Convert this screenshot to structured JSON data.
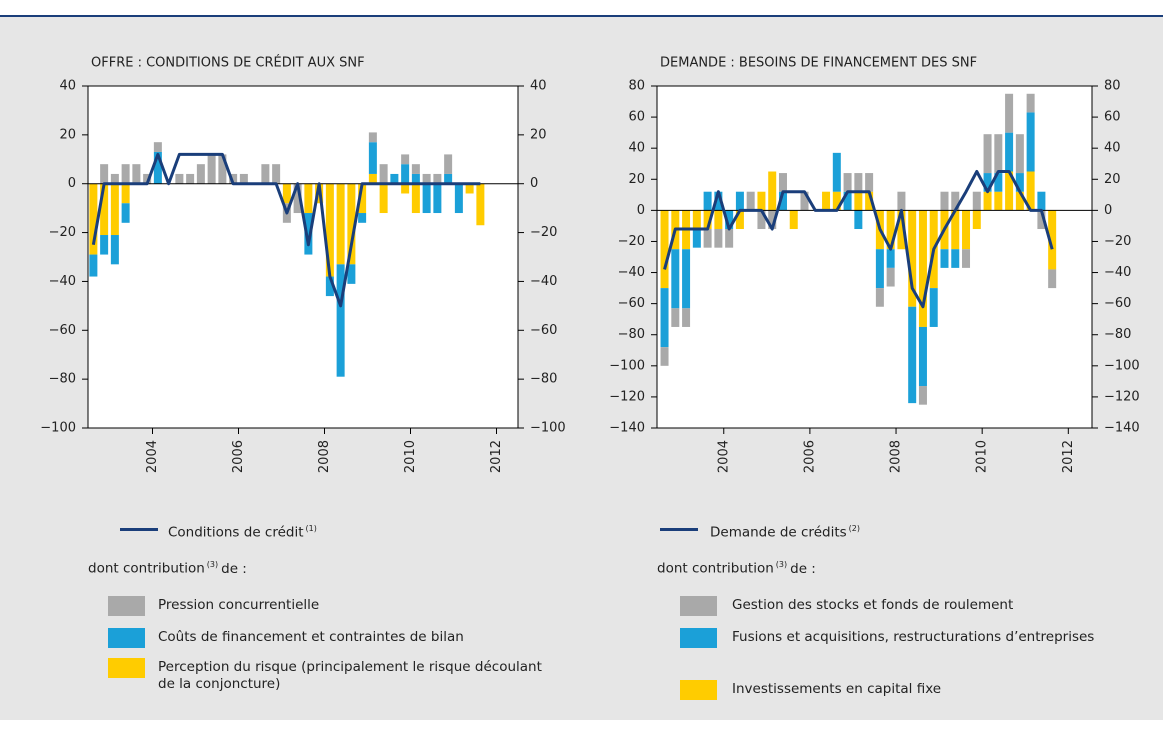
{
  "chart_data": [
    {
      "type": "combo",
      "title": "OFFRE : CONDITIONS DE CRÉDIT AUX SNF",
      "x": [
        2002.625,
        2002.875,
        2003.125,
        2003.375,
        2003.625,
        2003.875,
        2004.125,
        2004.375,
        2004.625,
        2004.875,
        2005.125,
        2005.375,
        2005.625,
        2005.875,
        2006.125,
        2006.375,
        2006.625,
        2006.875,
        2007.125,
        2007.375,
        2007.625,
        2007.875,
        2008.125,
        2008.375,
        2008.625,
        2008.875,
        2009.125,
        2009.375,
        2009.625,
        2009.875,
        2010.125,
        2010.375,
        2010.625,
        2010.875,
        2011.125,
        2011.375,
        2011.625
      ],
      "xlim": [
        2002.5,
        2012.5
      ],
      "xticks": [
        2004,
        2006,
        2008,
        2010,
        2012
      ],
      "ylim": [
        -100,
        40
      ],
      "yticks": [
        {
          "value": -100,
          "label": "−100"
        },
        {
          "value": -80,
          "label": "−80"
        },
        {
          "value": -60,
          "label": "−60"
        },
        {
          "value": -40,
          "label": "−40"
        },
        {
          "value": -20,
          "label": "−20"
        },
        0,
        20,
        40
      ],
      "y2lim": [
        -100,
        40
      ],
      "y2ticks": [
        {
          "value": -100,
          "label": "−100"
        },
        {
          "value": -80,
          "label": "−80"
        },
        {
          "value": -60,
          "label": "−60"
        },
        {
          "value": -40,
          "label": "−40"
        },
        {
          "value": -20,
          "label": "−20"
        },
        0,
        20,
        40
      ],
      "series": [
        {
          "name": "Pression concurrentielle",
          "type": "bar",
          "color": "#a9a9a9",
          "values": [
            0,
            8,
            4,
            8,
            8,
            4,
            4,
            0,
            4,
            4,
            8,
            12,
            12,
            4,
            4,
            0,
            8,
            8,
            -8,
            -12,
            0,
            0,
            0,
            0,
            0,
            0,
            4,
            8,
            0,
            4,
            4,
            4,
            4,
            8,
            0,
            0,
            0
          ]
        },
        {
          "name": "Coûts de financement et contraintes de bilan",
          "type": "bar",
          "color": "#1ba0d8",
          "values": [
            -9,
            -8,
            -12,
            -8,
            0,
            0,
            13,
            0,
            0,
            0,
            0,
            0,
            0,
            0,
            0,
            0,
            0,
            0,
            0,
            0,
            -17,
            0,
            -8,
            -46,
            -8,
            -4,
            13,
            0,
            4,
            8,
            4,
            -12,
            -12,
            4,
            -12,
            0,
            0
          ]
        },
        {
          "name": "Perception du risque (principalement le risque découlant de la conjoncture)",
          "type": "bar",
          "color": "#ffcc00",
          "values": [
            -29,
            -21,
            -21,
            -8,
            0,
            0,
            0,
            0,
            0,
            0,
            0,
            0,
            0,
            0,
            0,
            0,
            0,
            0,
            -8,
            0,
            -12,
            -8,
            -38,
            -33,
            -33,
            -12,
            4,
            -12,
            0,
            -4,
            -12,
            0,
            0,
            0,
            0,
            -4,
            -17
          ]
        },
        {
          "name": "Conditions de crédit",
          "note": "(1)",
          "type": "line",
          "color": "#1a3e7a",
          "values": [
            -25,
            0,
            0,
            0,
            0,
            0,
            12,
            0,
            12,
            12,
            12,
            12,
            12,
            0,
            0,
            0,
            0,
            0,
            -12,
            0,
            -25,
            0,
            -38,
            -50,
            -25,
            0,
            0,
            0,
            0,
            0,
            0,
            0,
            0,
            0,
            0,
            0,
            0
          ]
        }
      ],
      "contribution": {
        "before": "dont contribution",
        "note": "(3)",
        "after": "de :"
      }
    },
    {
      "type": "combo",
      "title": "DEMANDE : BESOINS DE FINANCEMENT DES SNF",
      "x": [
        2002.625,
        2002.875,
        2003.125,
        2003.375,
        2003.625,
        2003.875,
        2004.125,
        2004.375,
        2004.625,
        2004.875,
        2005.125,
        2005.375,
        2005.625,
        2005.875,
        2006.125,
        2006.375,
        2006.625,
        2006.875,
        2007.125,
        2007.375,
        2007.625,
        2007.875,
        2008.125,
        2008.375,
        2008.625,
        2008.875,
        2009.125,
        2009.375,
        2009.625,
        2009.875,
        2010.125,
        2010.375,
        2010.625,
        2010.875,
        2011.125,
        2011.375,
        2011.625
      ],
      "xlim": [
        2002.45,
        2012.55
      ],
      "xticks": [
        2004,
        2006,
        2008,
        2010,
        2012
      ],
      "ylim": [
        -140,
        80
      ],
      "yticks": [
        {
          "value": -140,
          "label": "−140"
        },
        {
          "value": -120,
          "label": "−120"
        },
        {
          "value": -100,
          "label": "−100"
        },
        {
          "value": -80,
          "label": "−80"
        },
        {
          "value": -60,
          "label": "−60"
        },
        {
          "value": -40,
          "label": "−40"
        },
        {
          "value": -20,
          "label": "−20"
        },
        0,
        20,
        40,
        60,
        80
      ],
      "y2lim": [
        -140,
        80
      ],
      "y2ticks": [
        {
          "value": -140,
          "label": "−140"
        },
        {
          "value": -120,
          "label": "−120"
        },
        {
          "value": -100,
          "label": "−100"
        },
        {
          "value": -80,
          "label": "−80"
        },
        {
          "value": -60,
          "label": "−60"
        },
        {
          "value": -40,
          "label": "−40"
        },
        {
          "value": -20,
          "label": "−20"
        },
        0,
        20,
        40,
        60,
        80
      ],
      "series": [
        {
          "name": "Gestion des stocks et fonds de roulement",
          "type": "bar",
          "color": "#a9a9a9",
          "values": [
            -12,
            -12,
            -12,
            0,
            -12,
            -12,
            -12,
            0,
            12,
            -12,
            -12,
            12,
            0,
            12,
            0,
            0,
            0,
            12,
            12,
            12,
            -12,
            -12,
            12,
            0,
            -12,
            0,
            12,
            12,
            -12,
            12,
            25,
            25,
            25,
            25,
            12,
            -12,
            -12
          ]
        },
        {
          "name": "Fusions et acquisitions, restructurations d’entreprises",
          "type": "bar",
          "color": "#1ba0d8",
          "values": [
            -38,
            -38,
            -38,
            -12,
            12,
            12,
            -12,
            12,
            0,
            0,
            0,
            12,
            0,
            0,
            0,
            0,
            25,
            12,
            -12,
            0,
            -25,
            -12,
            0,
            -62,
            -38,
            -25,
            -12,
            -12,
            0,
            0,
            12,
            12,
            25,
            12,
            38,
            12,
            0
          ]
        },
        {
          "name": "Investissements en capital fixe",
          "type": "bar",
          "color": "#ffcc00",
          "values": [
            -50,
            -25,
            -25,
            -12,
            -12,
            -12,
            0,
            -12,
            0,
            12,
            25,
            0,
            -12,
            0,
            0,
            12,
            12,
            0,
            12,
            12,
            -25,
            -25,
            -25,
            -62,
            -75,
            -50,
            -25,
            -25,
            -25,
            -12,
            12,
            12,
            25,
            12,
            25,
            0,
            -38
          ]
        },
        {
          "name": "Demande de crédits",
          "note": "(2)",
          "type": "line",
          "color": "#1a3e7a",
          "values": [
            -38,
            -12,
            -12,
            -12,
            -12,
            12,
            -12,
            0,
            0,
            0,
            -12,
            12,
            12,
            12,
            0,
            0,
            0,
            12,
            12,
            12,
            -12,
            -25,
            0,
            -50,
            -62,
            -25,
            -12,
            0,
            12,
            25,
            12,
            25,
            25,
            12,
            0,
            0,
            -25
          ]
        }
      ],
      "contribution": {
        "before": "dont contribution",
        "note": "(3)",
        "after": "de :"
      }
    }
  ]
}
